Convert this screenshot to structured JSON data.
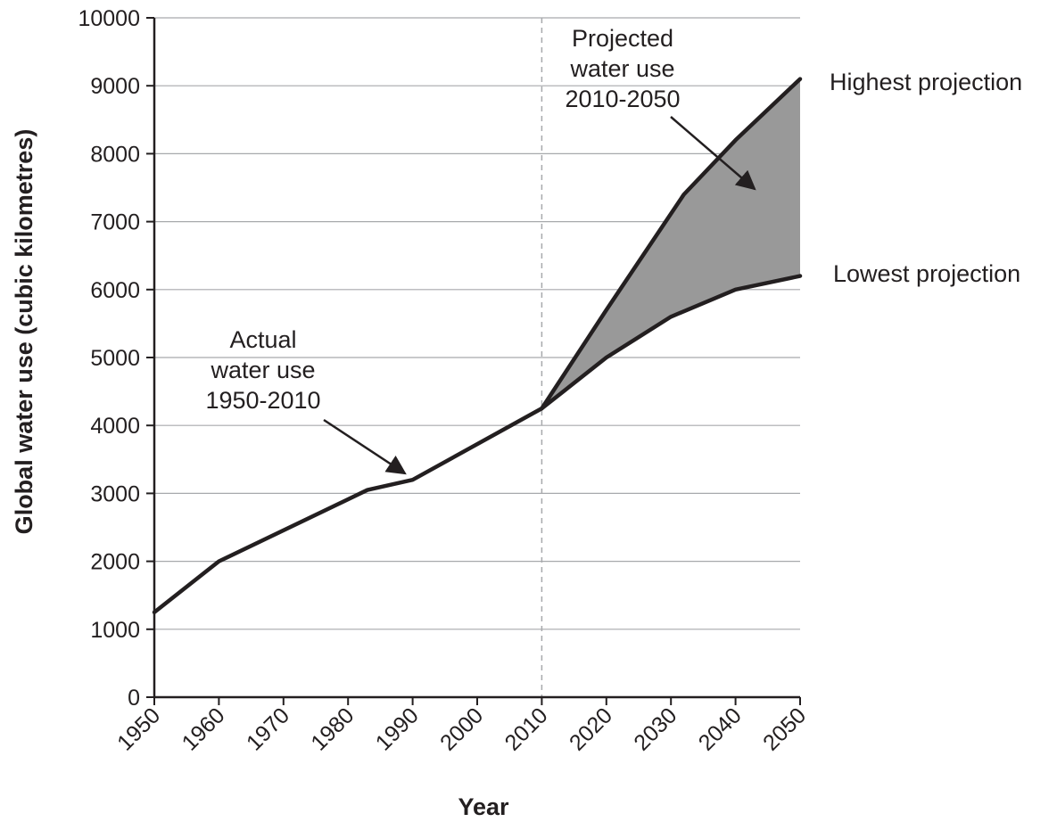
{
  "chart_data": {
    "type": "line",
    "xlabel": "Year",
    "ylabel": "Global water use (cubic kilometres)",
    "xlim": [
      1950,
      2050
    ],
    "ylim": [
      0,
      10000
    ],
    "x_ticks": [
      1950,
      1960,
      1970,
      1980,
      1990,
      2000,
      2010,
      2020,
      2030,
      2040,
      2050
    ],
    "y_ticks": [
      0,
      1000,
      2000,
      3000,
      4000,
      5000,
      6000,
      7000,
      8000,
      9000,
      10000
    ],
    "grid": "horizontal",
    "divider_year": 2010,
    "colors": {
      "line": "#231f20",
      "fill": "#999999",
      "grid": "#a7a9ac",
      "divider": "#a7a9ac"
    },
    "series": [
      {
        "x": [
          1950,
          1960,
          1983,
          1990,
          2010
        ],
        "y": [
          1250,
          2000,
          3050,
          3200,
          4250
        ]
      },
      {
        "x": [
          2010,
          2020,
          2030,
          2040,
          2050
        ],
        "y": [
          4250,
          5000,
          5600,
          6000,
          6200
        ]
      },
      {
        "x": [
          2010,
          2020,
          2032,
          2040,
          2050
        ],
        "y": [
          4250,
          5700,
          7400,
          8200,
          9100
        ]
      }
    ],
    "shaded_region": {
      "between": "lowest and highest projection",
      "x_start": 2010,
      "x_end": 2050
    },
    "annotations": [
      {
        "lines": [
          "Actual",
          "water use",
          "1950-2010"
        ],
        "points_to": {
          "x": 1990,
          "y": 3200
        }
      },
      {
        "lines": [
          "Projected",
          "water use",
          "2010-2050"
        ],
        "points_to": {
          "x": 2044,
          "y": 7500
        }
      },
      {
        "text": "Highest projection"
      },
      {
        "text": "Lowest projection"
      }
    ]
  }
}
